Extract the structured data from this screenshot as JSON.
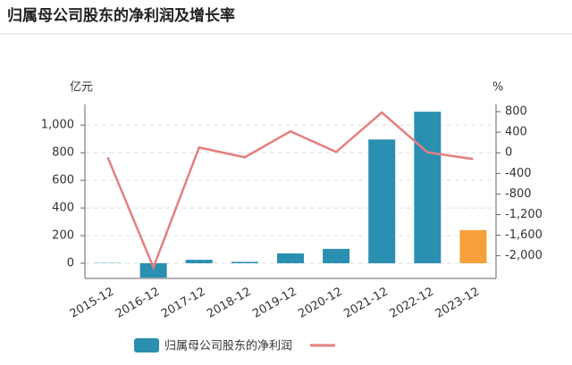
{
  "chart_data": {
    "type": "bar",
    "title": "归属母公司股东的净利润及增长率",
    "y_label": "亿元",
    "y2_label": "%",
    "categories": [
      "2015-12",
      "2016-12",
      "2017-12",
      "2018-12",
      "2019-12",
      "2020-12",
      "2021-12",
      "2022-12",
      "2023-12"
    ],
    "series": [
      {
        "name": "归属母公司股东的净利润",
        "type": "bar",
        "color": "#2a8fb0",
        "point_colors": [
          "#2a8fb0",
          "#2a8fb0",
          "#2a8fb0",
          "#2a8fb0",
          "#2a8fb0",
          "#2a8fb0",
          "#2a8fb0",
          "#2a8fb0",
          "#f5a03a"
        ],
        "values": [
          2,
          -104,
          25,
          10,
          71,
          104,
          896,
          1097,
          240
        ]
      },
      {
        "type": "line",
        "axis": "y2",
        "color": "#e57f7f",
        "values": [
          -90,
          -2226,
          104,
          -87,
          417,
          17,
          783,
          10,
          -122
        ]
      }
    ],
    "ylim": [
      -110,
      1150
    ],
    "yticks": [
      0,
      200,
      400,
      600,
      800,
      {
        "value": 1000,
        "label": "1,000"
      }
    ],
    "y2lim": [
      -2440,
      940
    ],
    "y2ticks": [
      800,
      400,
      0,
      -400,
      -800,
      {
        "value": -1200,
        "label": "-1,200"
      },
      {
        "value": -1600,
        "label": "-1,600"
      },
      {
        "value": -2000,
        "label": "-2,000"
      }
    ],
    "grid": true
  }
}
